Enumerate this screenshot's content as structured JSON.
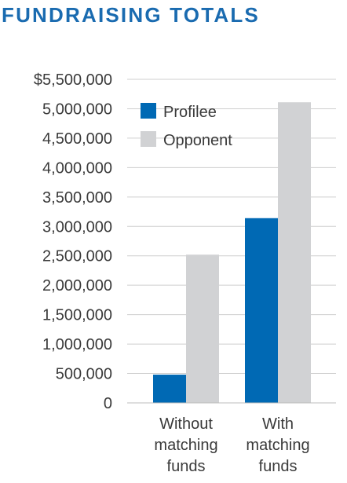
{
  "chart_data": {
    "type": "bar",
    "title": "FUNDRAISING TOTALS",
    "categories": [
      [
        "Without",
        "matching",
        "funds"
      ],
      [
        "With",
        "matching",
        "funds"
      ]
    ],
    "series": [
      {
        "name": "Profilee",
        "color": "#0069b4",
        "values": [
          480000,
          3140000
        ]
      },
      {
        "name": "Opponent",
        "color": "#d1d2d4",
        "values": [
          2520000,
          5110000
        ]
      }
    ],
    "ylim": [
      0,
      5500000
    ],
    "y_ticks": [
      {
        "value": 5500000,
        "label": "$5,500,000"
      },
      {
        "value": 5000000,
        "label": "5,000,000"
      },
      {
        "value": 4500000,
        "label": "4,500,000"
      },
      {
        "value": 4000000,
        "label": "4,000,000"
      },
      {
        "value": 3500000,
        "label": "3,500,000"
      },
      {
        "value": 3000000,
        "label": "3,000,000"
      },
      {
        "value": 2500000,
        "label": "2,500,000"
      },
      {
        "value": 2000000,
        "label": "2,000,000"
      },
      {
        "value": 1500000,
        "label": "1,500,000"
      },
      {
        "value": 1000000,
        "label": "1,000,000"
      },
      {
        "value": 500000,
        "label": "500,000"
      },
      {
        "value": 0,
        "label": "0"
      }
    ],
    "grid": true,
    "legend_position": "top-left"
  }
}
